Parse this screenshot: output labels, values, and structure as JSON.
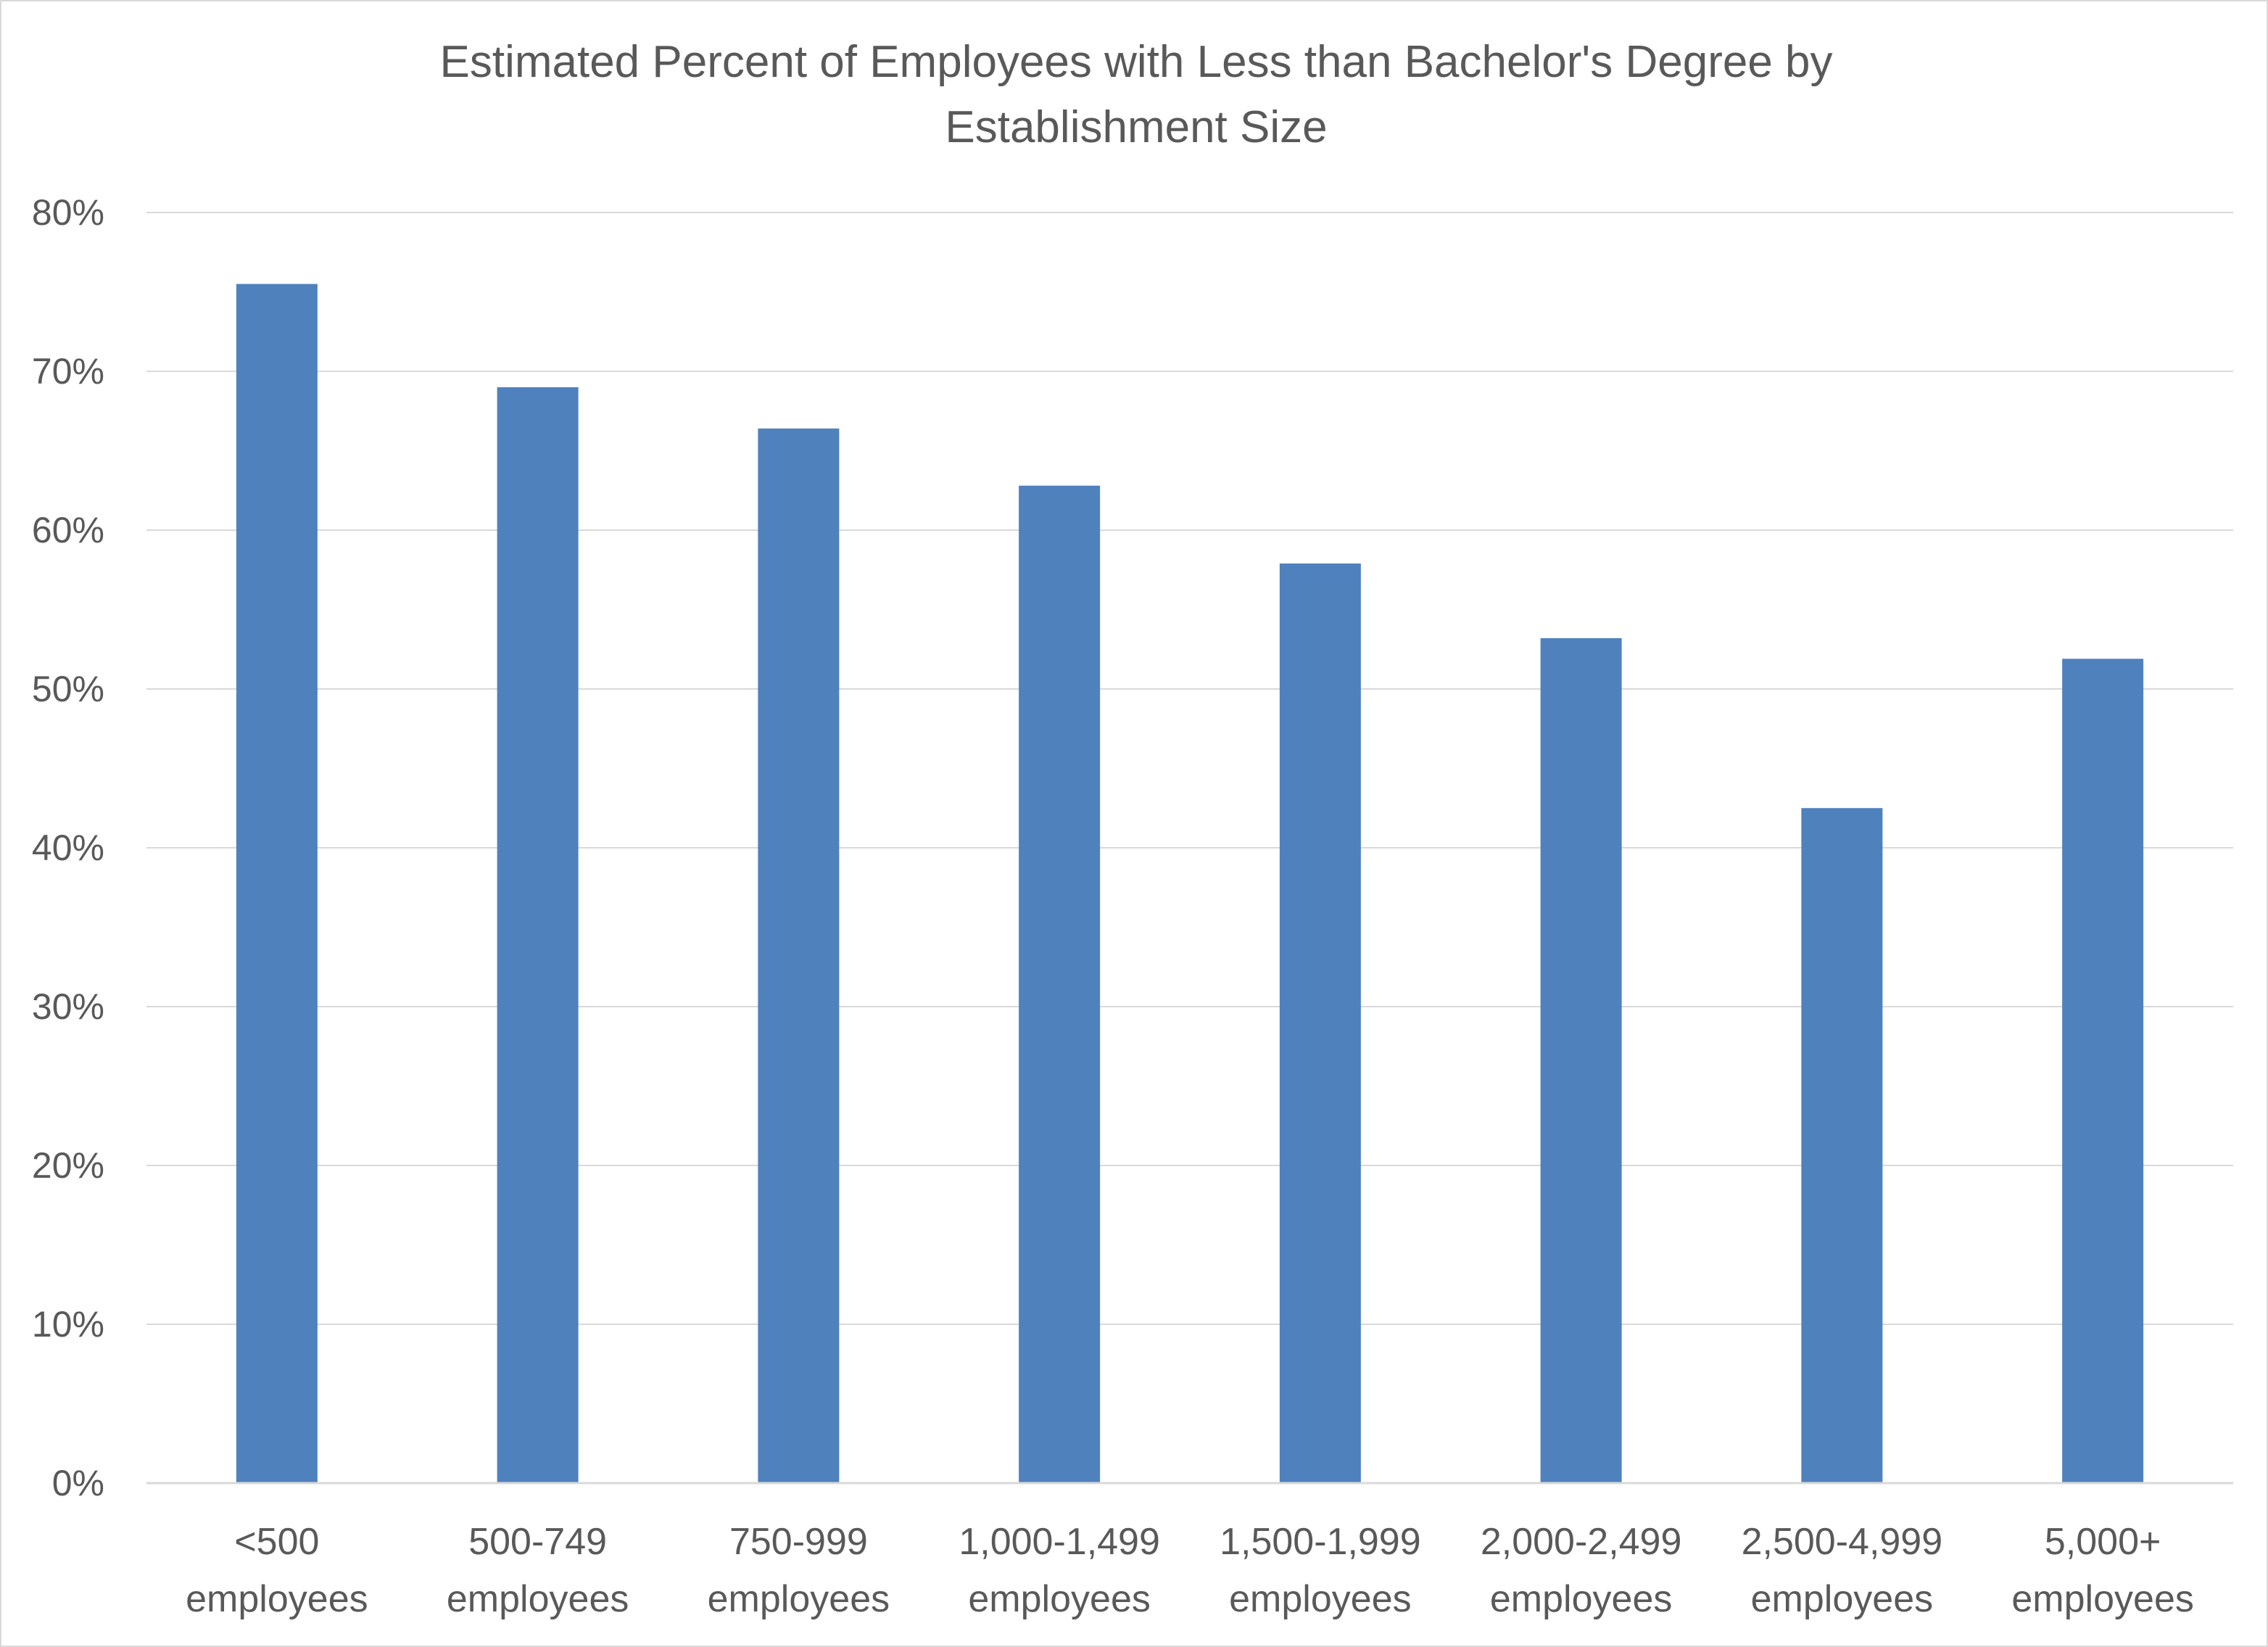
{
  "chart_data": {
    "type": "bar",
    "title": "Estimated Percent of Employees with Less than Bachelor's Degree by Establishment Size",
    "title_lines": [
      "Estimated Percent of Employees with Less than Bachelor's Degree by",
      "Establishment Size"
    ],
    "xlabel": "",
    "ylabel": "",
    "categories": [
      "<500 employees",
      "500-749 employees",
      "750-999 employees",
      "1,000-1,499 employees",
      "1,500-1,999 employees",
      "2,000-2,499 employees",
      "2,500-4,999 employees",
      "5,000+ employees"
    ],
    "category_lines": [
      [
        "<500",
        "employees"
      ],
      [
        "500-749",
        "employees"
      ],
      [
        "750-999",
        "employees"
      ],
      [
        "1,000-1,499",
        "employees"
      ],
      [
        "1,500-1,999",
        "employees"
      ],
      [
        "2,000-2,499",
        "employees"
      ],
      [
        "2,500-4,999",
        "employees"
      ],
      [
        "5,000+",
        "employees"
      ]
    ],
    "values": [
      75.5,
      69.0,
      66.4,
      62.8,
      57.9,
      53.2,
      42.5,
      51.9
    ],
    "unit": "%",
    "ylim": [
      0,
      80
    ],
    "yticks": [
      0,
      10,
      20,
      30,
      40,
      50,
      60,
      70,
      80
    ],
    "ytick_labels": [
      "0%",
      "10%",
      "20%",
      "30%",
      "40%",
      "50%",
      "60%",
      "70%",
      "80%"
    ],
    "grid": true,
    "legend": "none",
    "bar_color": "#4f81bd",
    "grid_color": "#d9d9d9",
    "text_color": "#595959"
  }
}
